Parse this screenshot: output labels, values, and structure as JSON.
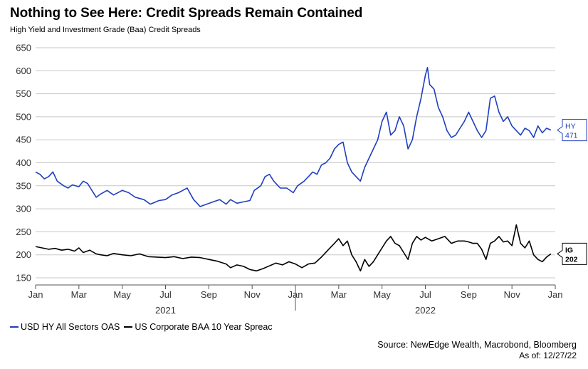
{
  "title": "Nothing to See Here: Credit Spreads Remain Contained",
  "subtitle": "High Yield and Investment Grade (Baa) Credit Spreads",
  "source": "Source: NewEdge Wealth, Macrobond, Bloomberg",
  "as_of": "As of: 12/27/22",
  "colors": {
    "hy": "#1f3fbf",
    "ig": "#000000",
    "grid": "#c8c8c8",
    "axis": "#555555"
  },
  "chart_data": {
    "type": "line",
    "title": "Nothing to See Here: Credit Spreads Remain Contained",
    "xlabel": "",
    "ylabel": "",
    "ylim": [
      150,
      650
    ],
    "yticks": [
      "150",
      "200",
      "250",
      "300",
      "350",
      "400",
      "450",
      "500",
      "550",
      "600",
      "650"
    ],
    "xlim": [
      0,
      24
    ],
    "x_unit": "months since Jan 2021",
    "xticks": [
      {
        "x": 0,
        "label": "Jan"
      },
      {
        "x": 2,
        "label": "Mar"
      },
      {
        "x": 4,
        "label": "May"
      },
      {
        "x": 6,
        "label": "Jul"
      },
      {
        "x": 8,
        "label": "Sep"
      },
      {
        "x": 10,
        "label": "Nov"
      },
      {
        "x": 12,
        "label": "Jan"
      },
      {
        "x": 14,
        "label": "Mar"
      },
      {
        "x": 16,
        "label": "May"
      },
      {
        "x": 18,
        "label": "Jul"
      },
      {
        "x": 20,
        "label": "Sep"
      },
      {
        "x": 22,
        "label": "Nov"
      },
      {
        "x": 24,
        "label": "Jan"
      }
    ],
    "year_labels": [
      {
        "x": 6,
        "label": "2021"
      },
      {
        "x": 18,
        "label": "2022"
      }
    ],
    "series": [
      {
        "name": "USD HY All Sectors OAS",
        "end_label": "HY",
        "end_value": "471",
        "x": [
          0,
          0.2,
          0.4,
          0.6,
          0.8,
          1.0,
          1.3,
          1.5,
          1.7,
          2.0,
          2.2,
          2.4,
          2.6,
          2.8,
          3.0,
          3.3,
          3.6,
          4.0,
          4.3,
          4.6,
          5.0,
          5.3,
          5.7,
          6.0,
          6.3,
          6.6,
          7.0,
          7.3,
          7.6,
          7.9,
          8.2,
          8.5,
          8.8,
          9.0,
          9.3,
          9.6,
          9.9,
          10.1,
          10.4,
          10.6,
          10.8,
          11.0,
          11.3,
          11.6,
          11.9,
          12.1,
          12.4,
          12.6,
          12.8,
          13.0,
          13.2,
          13.4,
          13.6,
          13.8,
          14.0,
          14.2,
          14.4,
          14.6,
          14.8,
          15.0,
          15.2,
          15.4,
          15.6,
          15.8,
          16.0,
          16.2,
          16.4,
          16.6,
          16.8,
          17.0,
          17.2,
          17.4,
          17.6,
          17.8,
          18.0,
          18.1,
          18.2,
          18.4,
          18.6,
          18.8,
          19.0,
          19.2,
          19.4,
          19.6,
          19.8,
          20.0,
          20.2,
          20.4,
          20.6,
          20.8,
          21.0,
          21.2,
          21.4,
          21.6,
          21.8,
          22.0,
          22.2,
          22.4,
          22.6,
          22.8,
          23.0,
          23.2,
          23.4,
          23.6,
          23.8
        ],
        "values": [
          380,
          375,
          365,
          370,
          380,
          360,
          350,
          345,
          352,
          348,
          360,
          355,
          340,
          325,
          332,
          340,
          330,
          340,
          335,
          325,
          320,
          310,
          318,
          320,
          330,
          335,
          345,
          320,
          305,
          310,
          315,
          320,
          310,
          320,
          312,
          315,
          318,
          340,
          350,
          370,
          375,
          360,
          345,
          345,
          335,
          350,
          360,
          370,
          380,
          375,
          395,
          400,
          410,
          430,
          440,
          445,
          400,
          380,
          370,
          360,
          390,
          410,
          430,
          450,
          490,
          510,
          460,
          470,
          500,
          480,
          430,
          450,
          500,
          540,
          590,
          607,
          570,
          560,
          520,
          500,
          470,
          455,
          460,
          475,
          490,
          510,
          490,
          470,
          455,
          470,
          540,
          545,
          510,
          490,
          500,
          480,
          470,
          460,
          475,
          470,
          455,
          480,
          465,
          475,
          471
        ]
      },
      {
        "name": "US Corporate BAA 10 Year Spreac",
        "end_label": "IG",
        "end_value": "202",
        "x": [
          0,
          0.3,
          0.6,
          0.9,
          1.2,
          1.5,
          1.8,
          2.0,
          2.2,
          2.5,
          2.8,
          3.0,
          3.3,
          3.6,
          4.0,
          4.4,
          4.8,
          5.2,
          5.6,
          6.0,
          6.4,
          6.8,
          7.2,
          7.6,
          8.0,
          8.4,
          8.8,
          9.0,
          9.3,
          9.6,
          9.9,
          10.2,
          10.5,
          10.8,
          11.1,
          11.4,
          11.7,
          12.0,
          12.3,
          12.6,
          12.9,
          13.2,
          13.5,
          13.8,
          14.0,
          14.2,
          14.4,
          14.6,
          14.8,
          15.0,
          15.2,
          15.4,
          15.6,
          15.8,
          16.0,
          16.2,
          16.4,
          16.6,
          16.8,
          17.0,
          17.2,
          17.4,
          17.6,
          17.8,
          18.0,
          18.3,
          18.6,
          18.9,
          19.2,
          19.5,
          19.8,
          20.0,
          20.2,
          20.4,
          20.6,
          20.8,
          21.0,
          21.2,
          21.4,
          21.6,
          21.8,
          22.0,
          22.2,
          22.4,
          22.6,
          22.8,
          23.0,
          23.2,
          23.4,
          23.6,
          23.8
        ],
        "values": [
          218,
          215,
          212,
          214,
          210,
          212,
          208,
          215,
          205,
          210,
          202,
          200,
          198,
          203,
          200,
          198,
          202,
          196,
          195,
          194,
          196,
          192,
          195,
          194,
          190,
          186,
          180,
          172,
          178,
          175,
          168,
          165,
          170,
          176,
          182,
          178,
          185,
          180,
          172,
          180,
          182,
          195,
          210,
          225,
          235,
          220,
          230,
          200,
          185,
          165,
          190,
          175,
          185,
          200,
          215,
          230,
          240,
          225,
          220,
          205,
          190,
          225,
          240,
          232,
          238,
          230,
          235,
          240,
          225,
          230,
          230,
          228,
          225,
          225,
          212,
          190,
          225,
          230,
          240,
          228,
          230,
          220,
          265,
          225,
          215,
          230,
          200,
          190,
          185,
          195,
          202
        ]
      }
    ]
  }
}
